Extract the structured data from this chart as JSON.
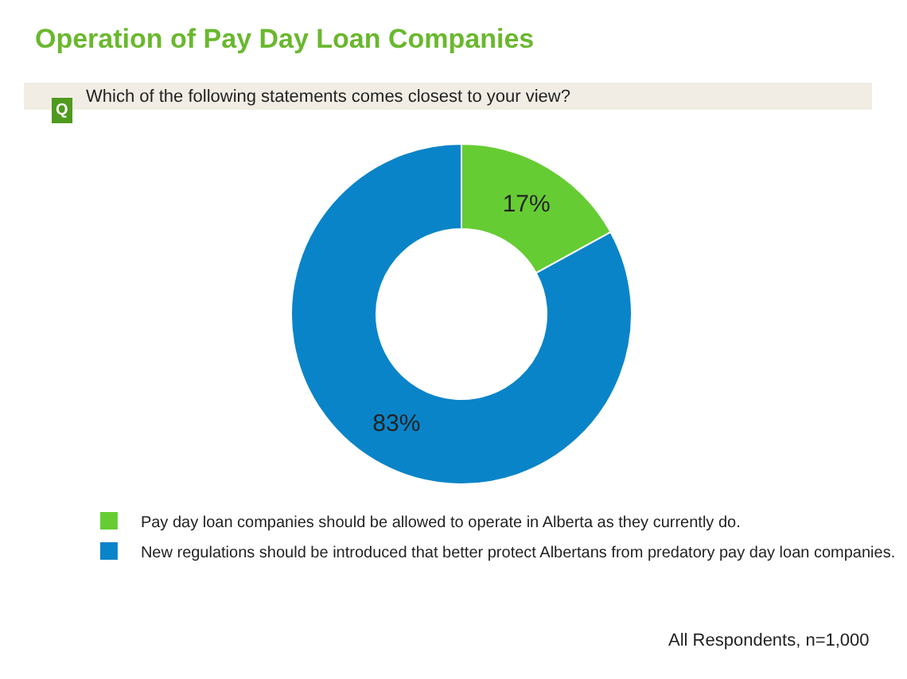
{
  "chart_data": {
    "type": "donut",
    "title": "Operation of Pay Day Loan Companies",
    "subtitle": "Which of the following statements comes closest to your view?",
    "categories": [
      "Pay day loan companies should be allowed to operate in Alberta as they currently do.",
      "New regulations should be introduced that better protect Albertans from predatory pay day loan companies."
    ],
    "values": [
      17,
      83
    ],
    "colors": [
      "#66cc33",
      "#0a84c8"
    ],
    "value_labels": [
      "17%",
      "83%"
    ],
    "legend": "bottom",
    "annotations": [
      "Q",
      "All Respondents, n=1,000"
    ]
  }
}
